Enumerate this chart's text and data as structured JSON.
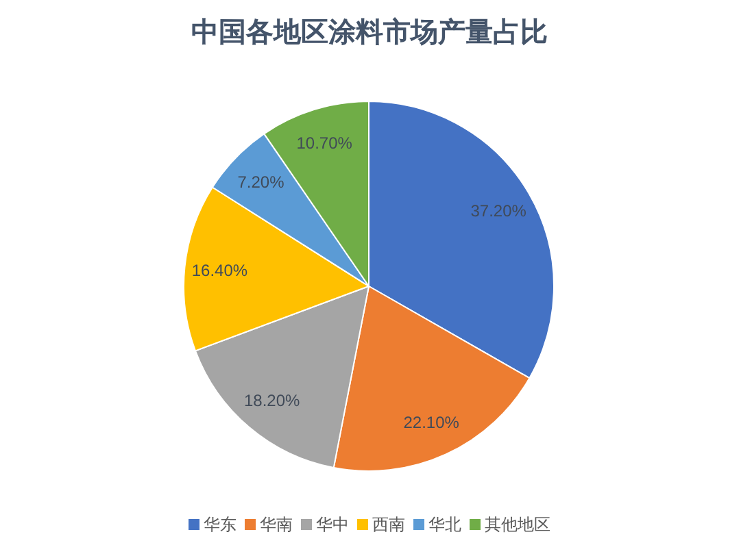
{
  "chart_data": {
    "type": "pie",
    "title": "中国各地区涂料市场产量占比",
    "categories": [
      "华东",
      "华南",
      "华中",
      "西南",
      "华北",
      "其他地区"
    ],
    "values": [
      37.2,
      22.1,
      18.2,
      16.4,
      7.2,
      10.7
    ],
    "colors": [
      "#4472c4",
      "#ed7d31",
      "#a5a5a5",
      "#ffc000",
      "#5b9bd5",
      "#70ad47"
    ],
    "value_labels": [
      "37.20%",
      "22.10%",
      "18.20%",
      "16.40%",
      "7.20%",
      "10.70%"
    ],
    "legend": "bottom"
  }
}
